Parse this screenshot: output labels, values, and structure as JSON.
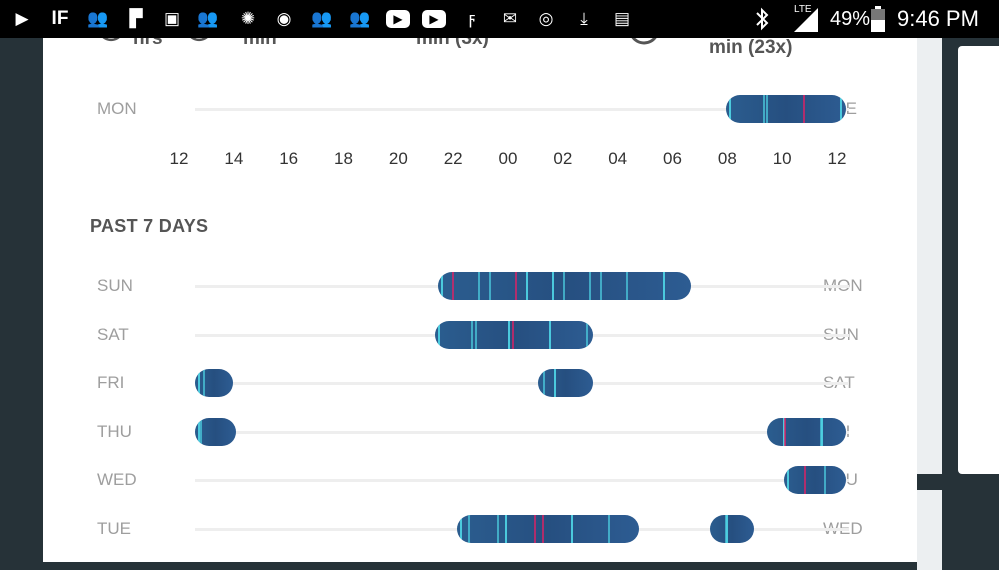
{
  "status_bar": {
    "battery_pct": "49%",
    "time": "9:46 PM",
    "network": "LTE",
    "icons": [
      "play-icon",
      "ifttt-icon",
      "people-icon",
      "flipboard-icon",
      "image-icon",
      "people-icon",
      "burst-icon",
      "circle-icon",
      "people-icon",
      "people-icon",
      "youtube-icon",
      "youtube-icon",
      "foursquare-icon",
      "email-icon",
      "chrome-icon",
      "download-icon",
      "briefcase-icon"
    ]
  },
  "summary": {
    "hrs_unit": "hrs",
    "min_unit": "min",
    "awake_unit": "min (3x)",
    "restless_unit": "min (23x)"
  },
  "last_night": {
    "day_start": "MON",
    "day_end": "TUE",
    "segments": [
      {
        "start": 7.5,
        "end": 11.9
      }
    ]
  },
  "axis": {
    "tick_labels": [
      "12",
      "14",
      "16",
      "18",
      "20",
      "22",
      "00",
      "02",
      "04",
      "06",
      "08",
      "10",
      "12"
    ]
  },
  "past_7_days": {
    "title": "PAST 7 DAYS",
    "rows": [
      {
        "day_start": "SUN",
        "day_end": "MON",
        "segments": [
          {
            "start": 20.9,
            "end": 6.2
          }
        ]
      },
      {
        "day_start": "SAT",
        "day_end": "SUN",
        "segments": [
          {
            "start": 20.8,
            "end": 2.6
          }
        ]
      },
      {
        "day_start": "FRI",
        "day_end": "SAT",
        "segments": [
          {
            "start": 12.0,
            "end": 13.4
          },
          {
            "start": 0.6,
            "end": 2.6
          }
        ]
      },
      {
        "day_start": "THU",
        "day_end": "FRI",
        "segments": [
          {
            "start": 12.0,
            "end": 13.5
          },
          {
            "start": 9.0,
            "end": 11.9
          }
        ]
      },
      {
        "day_start": "WED",
        "day_end": "THU",
        "segments": [
          {
            "start": 9.6,
            "end": 11.9
          }
        ]
      },
      {
        "day_start": "TUE",
        "day_end": "WED",
        "segments": [
          {
            "start": 21.6,
            "end": 4.3
          },
          {
            "start": 6.9,
            "end": 8.5
          }
        ]
      }
    ]
  },
  "colors": {
    "segment": "#2a5a8c",
    "awake_stripe": "#4dd0e1",
    "restless_stripe": "#e91e63"
  }
}
